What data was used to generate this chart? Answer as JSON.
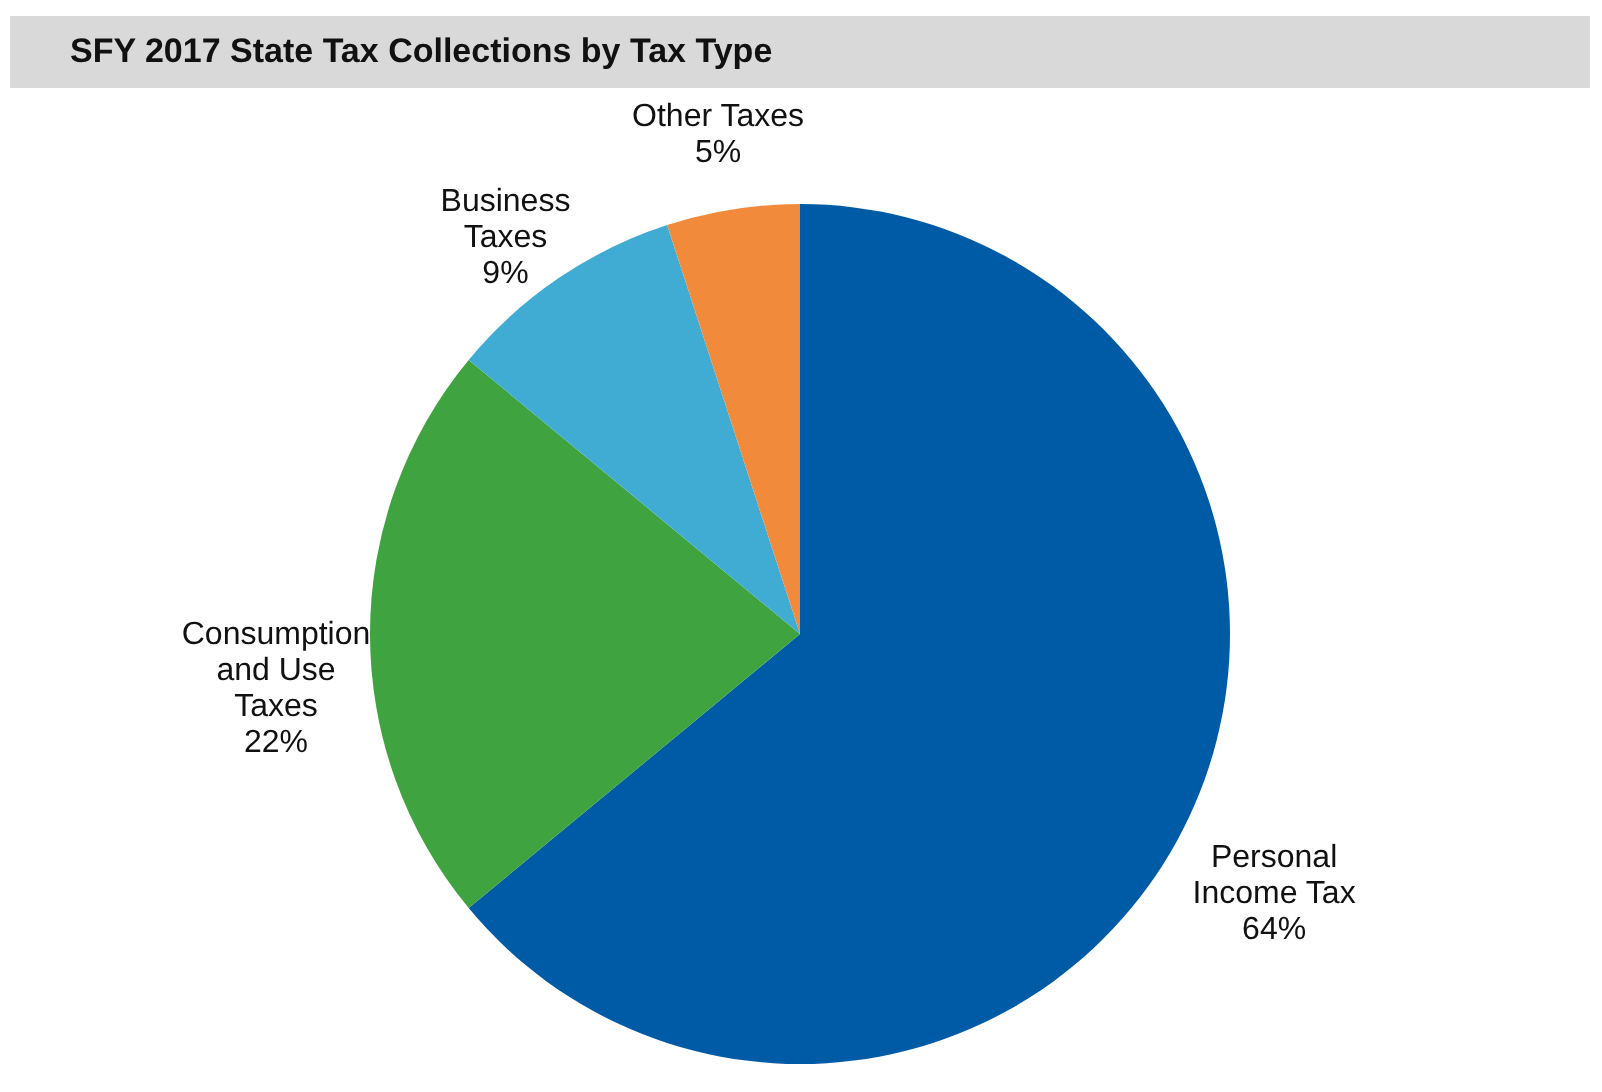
{
  "chart_data": {
    "type": "pie",
    "title": "SFY 2017 State Tax Collections by Tax Type",
    "categories": [
      "Personal Income Tax",
      "Consumption and Use Taxes",
      "Business Taxes",
      "Other Taxes"
    ],
    "values": [
      64,
      22,
      9,
      5
    ],
    "value_labels": [
      "64%",
      "22%",
      "9%",
      "5%"
    ],
    "colors": [
      "#005ba6",
      "#3fa33f",
      "#41acd3",
      "#f28a3c"
    ],
    "legend": false
  }
}
